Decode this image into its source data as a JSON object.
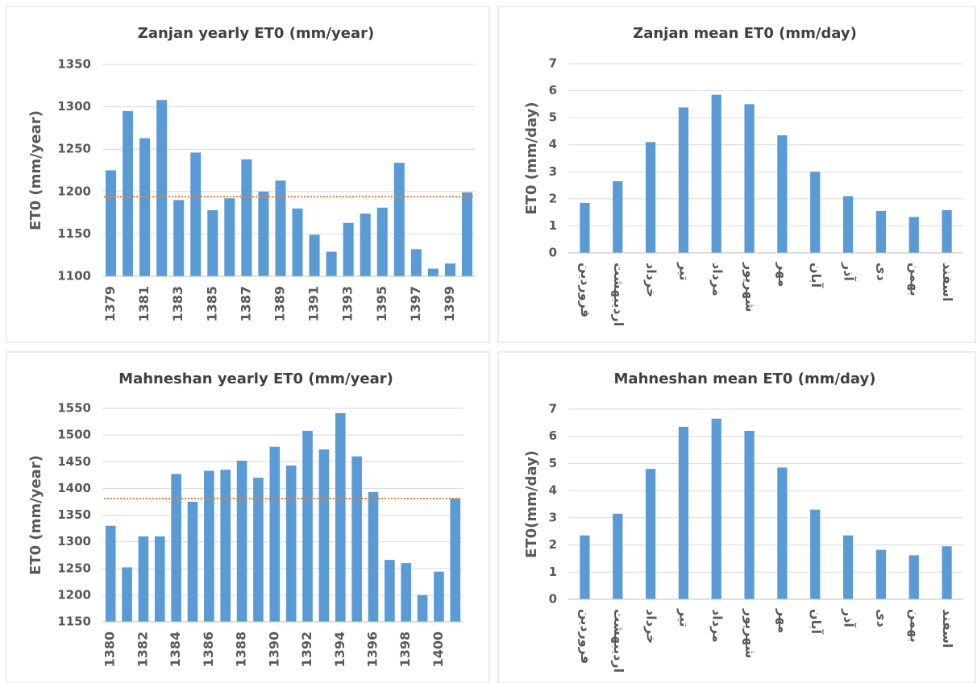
{
  "chart_data": [
    {
      "type": "bar",
      "title": "Zanjan yearly ET0 (mm/year)",
      "y_label": "ET0 (mm/year)",
      "categories": [
        "1379",
        null,
        "1381",
        null,
        "1383",
        null,
        "1385",
        null,
        "1387",
        null,
        "1389",
        null,
        "1391",
        null,
        "1393",
        null,
        "1395",
        null,
        "1397",
        null,
        "1399",
        null
      ],
      "values": [
        1225,
        1295,
        1263,
        1308,
        1190,
        1246,
        1178,
        1192,
        1238,
        1200,
        1213,
        1180,
        1149,
        1129,
        1163,
        1174,
        1181,
        1234,
        1132,
        1109,
        1115,
        1199
      ],
      "color": "#5b9bd5",
      "ylim": [
        1100,
        1350
      ],
      "yticks": [
        1100,
        1150,
        1200,
        1250,
        1300,
        1350
      ],
      "grid": true,
      "mean_line": {
        "value": 1194,
        "color": "#ed7d31"
      }
    },
    {
      "type": "bar",
      "title": "Zanjan mean ET0 (mm/day)",
      "y_label": "ET0 (mm/day)",
      "categories": [
        "فروردین",
        "اردیبهشت",
        "خرداد",
        "تیر",
        "مرداد",
        "شهریور",
        "مهر",
        "آبان",
        "آذر",
        "دی",
        "بهمن",
        "اسفند"
      ],
      "values": [
        1.85,
        2.65,
        4.1,
        5.38,
        5.85,
        5.5,
        4.35,
        3.0,
        2.1,
        1.55,
        1.33,
        1.58
      ],
      "color": "#5b9bd5",
      "ylim": [
        0,
        7
      ],
      "yticks": [
        0,
        1,
        2,
        3,
        4,
        5,
        6,
        7
      ],
      "grid": true
    },
    {
      "type": "bar",
      "title": "Mahneshan yearly ET0 (mm/year)",
      "y_label": "ET0 (mm/year)",
      "categories": [
        "1380",
        null,
        "1382",
        null,
        "1384",
        null,
        "1386",
        null,
        "1388",
        null,
        "1390",
        null,
        "1392",
        null,
        "1394",
        null,
        "1396",
        null,
        "1398",
        null,
        "1400",
        null
      ],
      "values": [
        1330,
        1252,
        1310,
        1310,
        1427,
        1375,
        1433,
        1435,
        1452,
        1420,
        1478,
        1443,
        1508,
        1473,
        1541,
        1460,
        1393,
        1266,
        1260,
        1200,
        1244,
        1381
      ],
      "color": "#5b9bd5",
      "ylim": [
        1150,
        1550
      ],
      "yticks": [
        1150,
        1200,
        1250,
        1300,
        1350,
        1400,
        1450,
        1500,
        1550
      ],
      "grid": true,
      "mean_line": {
        "value": 1381,
        "color": "#ed7d31"
      }
    },
    {
      "type": "bar",
      "title": "Mahneshan mean ET0 (mm/day)",
      "y_label": "ET0(mm/day)",
      "categories": [
        "فروردین",
        "اردیبهشت",
        "خرداد",
        "تیر",
        "مرداد",
        "شهریور",
        "مهر",
        "آبان",
        "آذر",
        "دی",
        "بهمن",
        "اسفند"
      ],
      "values": [
        2.35,
        3.15,
        4.8,
        6.35,
        6.65,
        6.2,
        4.85,
        3.3,
        2.35,
        1.82,
        1.62,
        1.95
      ],
      "color": "#5b9bd5",
      "ylim": [
        0,
        7
      ],
      "yticks": [
        0,
        1,
        2,
        3,
        4,
        5,
        6,
        7
      ],
      "grid": true
    }
  ]
}
